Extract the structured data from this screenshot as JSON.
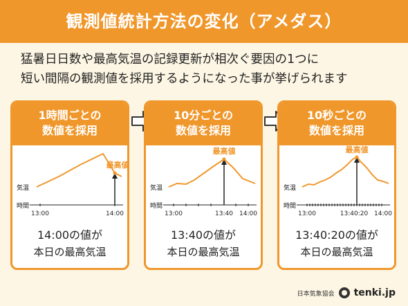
{
  "title": "観測値統計方法の変化（アメダス）",
  "intro": [
    "猛暑日日数や最高気温の記録更新が相次ぐ要因の1つに",
    "短い間隔の観測値を採用するようになった事が挙げられます"
  ],
  "colors": {
    "accent": "#f0972b",
    "background": "#fdf6e4",
    "line": "#f0972b",
    "axis": "#222222"
  },
  "cards": [
    {
      "header": [
        "1時間ごとの",
        "数値を採用"
      ],
      "y_label": "気温",
      "x_label": "時間",
      "ticks": [
        "13:00",
        "14:00"
      ],
      "peak_label": "最高値",
      "caption": [
        "14:00の値が",
        "本日の最高気温"
      ]
    },
    {
      "header": [
        "10分ごとの",
        "数値を採用"
      ],
      "y_label": "気温",
      "x_label": "時間",
      "ticks": [
        "13:00",
        "13:40",
        "14:00"
      ],
      "peak_label": "最高値",
      "caption": [
        "13:40の値が",
        "本日の最高気温"
      ]
    },
    {
      "header": [
        "10秒ごとの",
        "数値を採用"
      ],
      "y_label": "気温",
      "x_label": "時間",
      "ticks": [
        "13:00",
        "13:40:20",
        "14:00"
      ],
      "peak_label": "最高値",
      "caption": [
        "13:40:20の値が",
        "本日の最高気温"
      ]
    }
  ],
  "footer": {
    "org": "日本気象協会",
    "brand": "tenki.jp"
  },
  "icons": {
    "step_arrow": "right-arrow-icon",
    "logo": "tenki-logo-icon"
  }
}
